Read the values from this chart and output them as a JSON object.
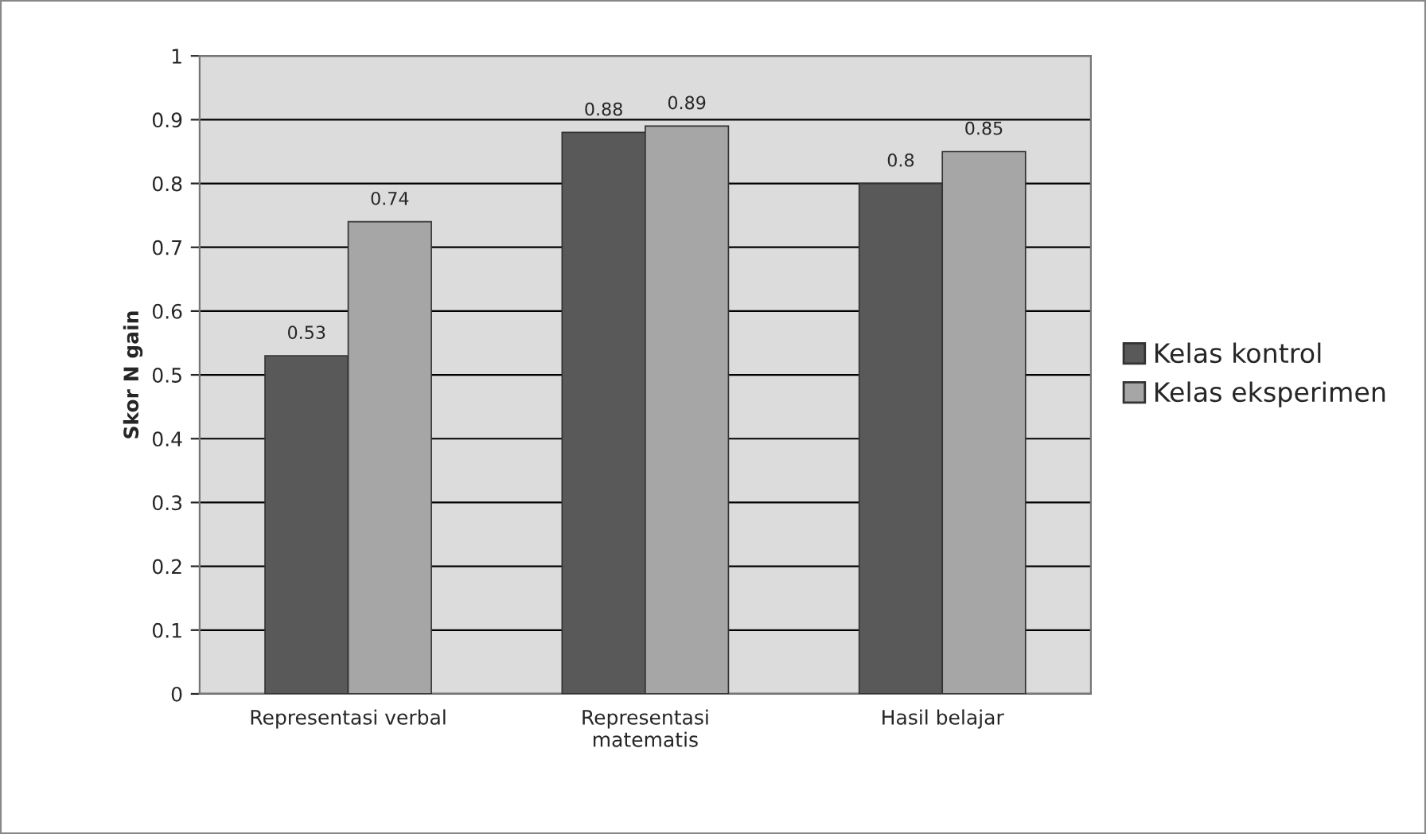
{
  "chart_data": {
    "type": "bar",
    "ylabel": "Skor N gain",
    "categories": [
      "Representasi verbal",
      "Representasi\nmatematis",
      "Hasil belajar"
    ],
    "series": [
      {
        "name": "Kelas kontrol",
        "color": "#595959",
        "values": [
          0.53,
          0.88,
          0.8
        ]
      },
      {
        "name": "Kelas eksperimen",
        "color": "#a6a6a6",
        "values": [
          0.74,
          0.89,
          0.85
        ]
      }
    ],
    "ylim": [
      0,
      1
    ],
    "yticks": [
      0,
      0.1,
      0.2,
      0.3,
      0.4,
      0.5,
      0.6,
      0.7,
      0.8,
      0.9,
      1
    ],
    "grid": "y",
    "legend": "right",
    "data_labels": true
  }
}
